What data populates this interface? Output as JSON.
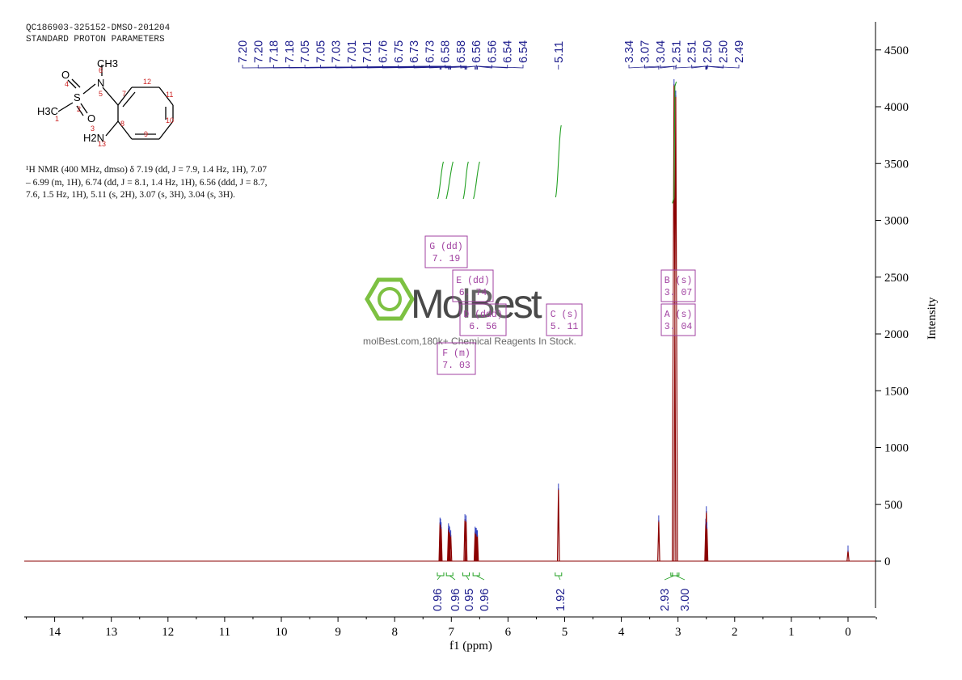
{
  "header": {
    "sample_id": "QC186903-325152-DMSO-201204",
    "parameters": "STANDARD PROTON PARAMETERS"
  },
  "structure": {
    "groups": {
      "methyl_top": "CH3",
      "nitrogen": "N",
      "sulfur": "S",
      "oxygen_top": "O",
      "oxygen_bottom": "O",
      "methyl_left": "H3C",
      "amine": "H2N"
    },
    "atom_numbers": [
      "1",
      "2",
      "3",
      "4",
      "5",
      "6",
      "7",
      "8",
      "9",
      "10",
      "11",
      "12",
      "13"
    ]
  },
  "nmr_description": [
    "¹H NMR (400 MHz, dmso) δ 7.19 (dd, J = 7.9, 1.4 Hz, 1H), 7.07",
    "– 6.99 (m, 1H), 6.74 (dd, J = 8.1, 1.4 Hz, 1H), 6.56 (ddd, J = 8.7,",
    "7.6, 1.5 Hz, 1H), 5.11 (s, 2H), 3.07 (s, 3H), 3.04 (s, 3H)."
  ],
  "watermark": {
    "brand": "MolBest",
    "tagline": "molBest.com,180k+ Chemical Reagents In Stock."
  },
  "colors": {
    "spectrum": "#8b0000",
    "peak_labels": "#1c1c8c",
    "integrals": "#22a022",
    "multiplets": "#a040a0",
    "logo_green": "#7dc142",
    "axis": "#000000"
  },
  "chart_data": {
    "type": "line",
    "xlabel": "f1 (ppm)",
    "ylabel": "Intensity",
    "xlim": [
      14.6,
      -0.5
    ],
    "ylim": [
      -480,
      4750
    ],
    "x_ticks": [
      14,
      13,
      12,
      11,
      10,
      9,
      8,
      7,
      6,
      5,
      4,
      3,
      2,
      1,
      0
    ],
    "y_ticks": [
      0,
      500,
      1000,
      1500,
      2000,
      2500,
      3000,
      3500,
      4000,
      4500
    ],
    "y_tick_labels": [
      "0",
      "500",
      "1000",
      "1500",
      "2000",
      "2500",
      "3000",
      "3500",
      "4000",
      "4500"
    ],
    "peaks": [
      {
        "ppm": 7.2,
        "height": 340
      },
      {
        "ppm": 7.19,
        "height": 330
      },
      {
        "ppm": 7.18,
        "height": 300
      },
      {
        "ppm": 7.05,
        "height": 290
      },
      {
        "ppm": 7.04,
        "height": 270
      },
      {
        "ppm": 7.03,
        "height": 260
      },
      {
        "ppm": 7.01,
        "height": 230
      },
      {
        "ppm": 6.76,
        "height": 370
      },
      {
        "ppm": 6.74,
        "height": 360
      },
      {
        "ppm": 6.58,
        "height": 260
      },
      {
        "ppm": 6.57,
        "height": 250
      },
      {
        "ppm": 6.56,
        "height": 250
      },
      {
        "ppm": 6.55,
        "height": 230
      },
      {
        "ppm": 6.54,
        "height": 230
      },
      {
        "ppm": 5.11,
        "height": 640
      },
      {
        "ppm": 3.34,
        "height": 360
      },
      {
        "ppm": 3.07,
        "height": 4200
      },
      {
        "ppm": 3.04,
        "height": 4100
      },
      {
        "ppm": 2.51,
        "height": 330
      },
      {
        "ppm": 2.5,
        "height": 440
      },
      {
        "ppm": 2.49,
        "height": 300
      },
      {
        "ppm": 0.0,
        "height": 95
      }
    ],
    "peak_labels_group1": [
      "7.20",
      "7.20",
      "7.18",
      "7.18",
      "7.05",
      "7.05",
      "7.03",
      "7.01",
      "7.01",
      "6.76",
      "6.75",
      "6.73",
      "6.73",
      "6.58",
      "6.58",
      "6.56",
      "6.56",
      "6.54",
      "6.54"
    ],
    "peak_label_single": "5.11",
    "peak_labels_group2": [
      "3.34",
      "3.07",
      "3.04",
      "2.51",
      "2.51",
      "2.50",
      "2.50",
      "2.49"
    ],
    "integrals": [
      {
        "ppm": 7.19,
        "value": "0.96"
      },
      {
        "ppm": 7.03,
        "value": "0.96"
      },
      {
        "ppm": 6.74,
        "value": "0.95"
      },
      {
        "ppm": 6.56,
        "value": "0.96"
      },
      {
        "ppm": 5.11,
        "value": "1.92"
      },
      {
        "ppm": 3.07,
        "value": "2.93"
      },
      {
        "ppm": 3.04,
        "value": "3.00"
      }
    ],
    "integral_curves": [
      {
        "from": 7.24,
        "to": 7.14
      },
      {
        "from": 7.09,
        "to": 6.97
      },
      {
        "from": 6.79,
        "to": 6.7
      },
      {
        "from": 6.61,
        "to": 6.5
      },
      {
        "from": 5.16,
        "to": 5.06
      }
    ],
    "multiplets": [
      {
        "letter": "G",
        "mult": "dd",
        "shift": "7.19"
      },
      {
        "letter": "E",
        "mult": "dd",
        "shift": "6.74"
      },
      {
        "letter": "D",
        "mult": "ddd",
        "shift": "6.56"
      },
      {
        "letter": "F",
        "mult": "m",
        "shift": "7.03"
      },
      {
        "letter": "C",
        "mult": "s",
        "shift": "5.11"
      },
      {
        "letter": "B",
        "mult": "s",
        "shift": "3.07"
      },
      {
        "letter": "A",
        "mult": "s",
        "shift": "3.04"
      }
    ]
  }
}
